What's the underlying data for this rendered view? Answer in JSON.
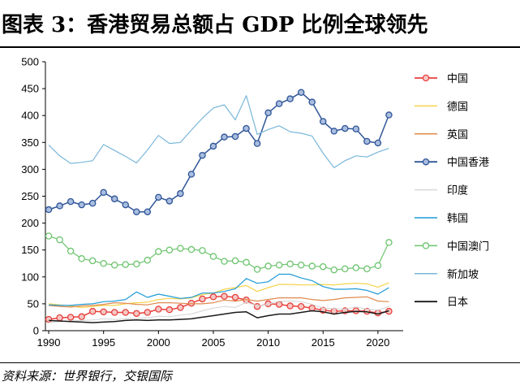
{
  "figure": {
    "title": "图表 3：香港贸易总额占 GDP 比例全球领先",
    "source": "资料来源：世界银行，交银国际"
  },
  "chart_data": {
    "type": "line",
    "x": [
      1990,
      1991,
      1992,
      1993,
      1994,
      1995,
      1996,
      1997,
      1998,
      1999,
      2000,
      2001,
      2002,
      2003,
      2004,
      2005,
      2006,
      2007,
      2008,
      2009,
      2010,
      2011,
      2012,
      2013,
      2014,
      2015,
      2016,
      2017,
      2018,
      2019,
      2020,
      2021
    ],
    "xticks": [
      "1990",
      "1995",
      "2000",
      "2005",
      "2010",
      "2015",
      "2020"
    ],
    "xlim": [
      1989.7,
      2022.3
    ],
    "ylim": [
      0,
      500
    ],
    "yticks": [
      "0",
      "50",
      "100",
      "150",
      "200",
      "250",
      "300",
      "350",
      "400",
      "450",
      "500"
    ],
    "grid": false,
    "legend_position": "right",
    "series": [
      {
        "name": "中国",
        "color": "#e8413c",
        "marker": "circle",
        "width": 1.5,
        "values": [
          21,
          24,
          25,
          26,
          36,
          35,
          34,
          34,
          32,
          34,
          40,
          39,
          43,
          51,
          59,
          63,
          64,
          62,
          57,
          45,
          50,
          49,
          46,
          45,
          42,
          38,
          36,
          37,
          37,
          36,
          33,
          36
        ]
      },
      {
        "name": "德国",
        "color": "#f5d24a",
        "marker": "none",
        "width": 1.2,
        "values": [
          50,
          48,
          46,
          43,
          45,
          47,
          47,
          50,
          52,
          53,
          58,
          60,
          59,
          61,
          67,
          70,
          77,
          80,
          84,
          73,
          80,
          86,
          86,
          85,
          85,
          86,
          85,
          87,
          88,
          87,
          81,
          89
        ]
      },
      {
        "name": "英国",
        "color": "#e08a4e",
        "marker": "none",
        "width": 1.2,
        "values": [
          47,
          45,
          44,
          46,
          47,
          49,
          52,
          51,
          49,
          48,
          52,
          52,
          51,
          50,
          50,
          52,
          57,
          55,
          58,
          55,
          58,
          61,
          61,
          61,
          58,
          56,
          58,
          61,
          62,
          63,
          55,
          54
        ]
      },
      {
        "name": "中国香港",
        "color": "#2f5597",
        "marker": "circle",
        "width": 1.5,
        "values": [
          225,
          232,
          240,
          234,
          237,
          257,
          245,
          234,
          221,
          221,
          248,
          241,
          255,
          291,
          326,
          343,
          360,
          361,
          376,
          348,
          405,
          422,
          431,
          443,
          425,
          389,
          371,
          376,
          375,
          352,
          349,
          401
        ]
      },
      {
        "name": "印度",
        "color": "#d9d9d9",
        "marker": "none",
        "width": 1.2,
        "values": [
          15,
          17,
          18,
          19,
          20,
          22,
          21,
          22,
          23,
          24,
          27,
          26,
          29,
          31,
          37,
          42,
          45,
          43,
          53,
          46,
          49,
          55,
          55,
          54,
          49,
          42,
          41,
          40,
          44,
          40,
          38,
          45
        ]
      },
      {
        "name": "韩国",
        "color": "#1f9bd7",
        "marker": "none",
        "width": 1.2,
        "values": [
          48,
          47,
          47,
          49,
          50,
          54,
          55,
          58,
          72,
          62,
          68,
          64,
          60,
          62,
          70,
          70,
          73,
          78,
          97,
          88,
          91,
          105,
          105,
          98,
          93,
          82,
          77,
          77,
          78,
          75,
          68,
          80
        ]
      },
      {
        "name": "中国澳门",
        "color": "#6cc46e",
        "marker": "circle",
        "width": 1.2,
        "values": [
          176,
          169,
          148,
          134,
          130,
          125,
          122,
          123,
          124,
          131,
          147,
          150,
          153,
          151,
          149,
          138,
          129,
          130,
          127,
          114,
          120,
          122,
          124,
          122,
          120,
          119,
          113,
          115,
          117,
          115,
          121,
          164
        ]
      },
      {
        "name": "新加坡",
        "color": "#79b7d9",
        "marker": "none",
        "width": 1.2,
        "values": [
          345,
          325,
          311,
          313,
          316,
          346,
          335,
          324,
          312,
          336,
          363,
          348,
          350,
          373,
          395,
          414,
          420,
          392,
          437,
          365,
          374,
          381,
          370,
          367,
          362,
          330,
          303,
          316,
          325,
          323,
          332,
          339
        ]
      },
      {
        "name": "日本",
        "color": "#1a1a1a",
        "marker": "none",
        "width": 1.5,
        "values": [
          19,
          18,
          17,
          16,
          15,
          16,
          17,
          19,
          20,
          19,
          20,
          20,
          21,
          22,
          25,
          28,
          31,
          34,
          35,
          24,
          28,
          31,
          31,
          34,
          37,
          35,
          31,
          34,
          36,
          35,
          31,
          37
        ]
      }
    ]
  }
}
